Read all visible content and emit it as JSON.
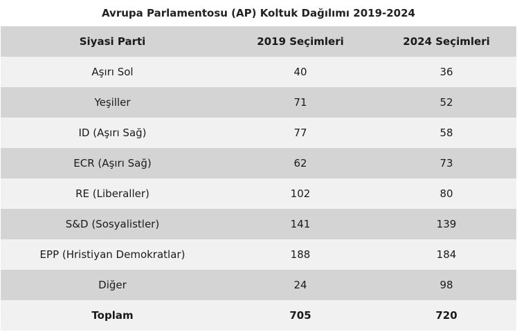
{
  "title": "Avrupa Parlamentosu (AP) Koltuk Dağılımı 2019-2024",
  "headers": [
    "Siyasi Parti",
    "2019 Seçimleri",
    "2024 Seçimleri"
  ],
  "rows": [
    [
      "Aşırı Sol",
      "40",
      "36"
    ],
    [
      "Yeşiller",
      "71",
      "52"
    ],
    [
      "ID (Aşırı Sağ)",
      "77",
      "58"
    ],
    [
      "ECR (Aşırı Sağ)",
      "62",
      "73"
    ],
    [
      "RE (Liberaller)",
      "102",
      "80"
    ],
    [
      "S&D (Sosyalistler)",
      "141",
      "139"
    ],
    [
      "EPP (Hristiyan Demokratlar)",
      "188",
      "184"
    ],
    [
      "Diğer",
      "24",
      "98"
    ]
  ],
  "total": [
    "Toplam",
    "705",
    "720"
  ]
}
